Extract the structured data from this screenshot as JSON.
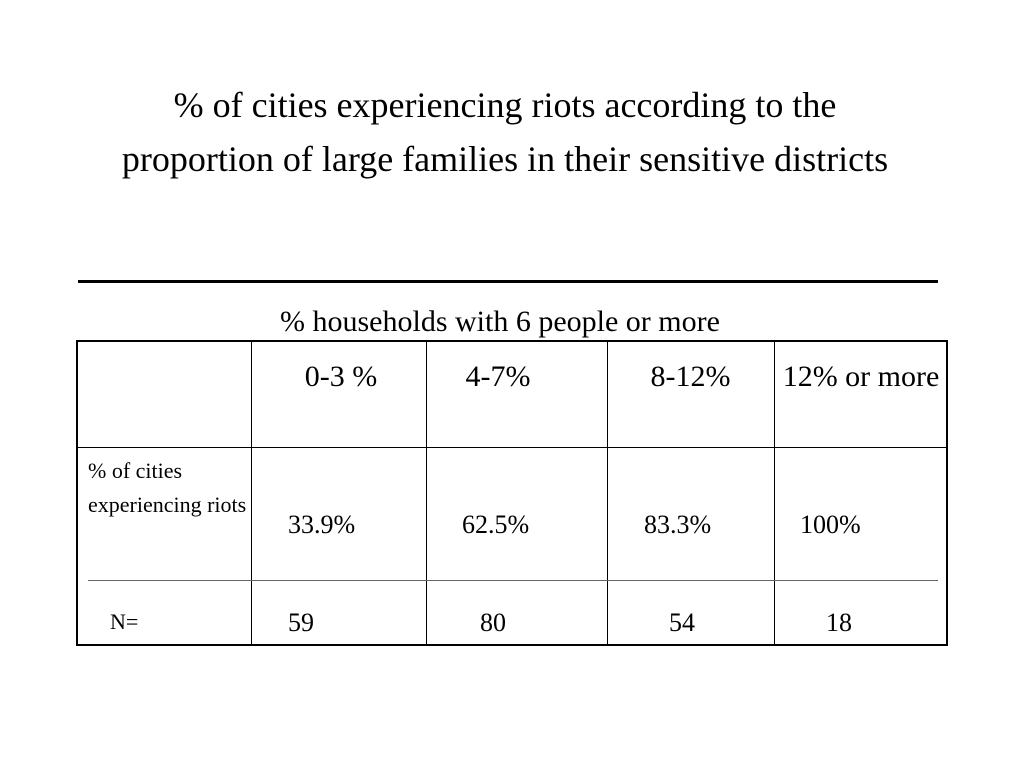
{
  "title": "% of cities experiencing riots according to the proportion of large families in their sensitive districts",
  "column_group_caption": "% households  with 6 people or more",
  "columns": [
    "0-3 %",
    "4-7%",
    "8-12%",
    "12% or more"
  ],
  "rows": [
    {
      "label": "% of cities experiencing riots",
      "values": [
        "33.9%",
        "62.5%",
        "83.3%",
        "100%"
      ]
    },
    {
      "label": "N=",
      "values": [
        "59",
        "80",
        "54",
        "18"
      ]
    }
  ]
}
